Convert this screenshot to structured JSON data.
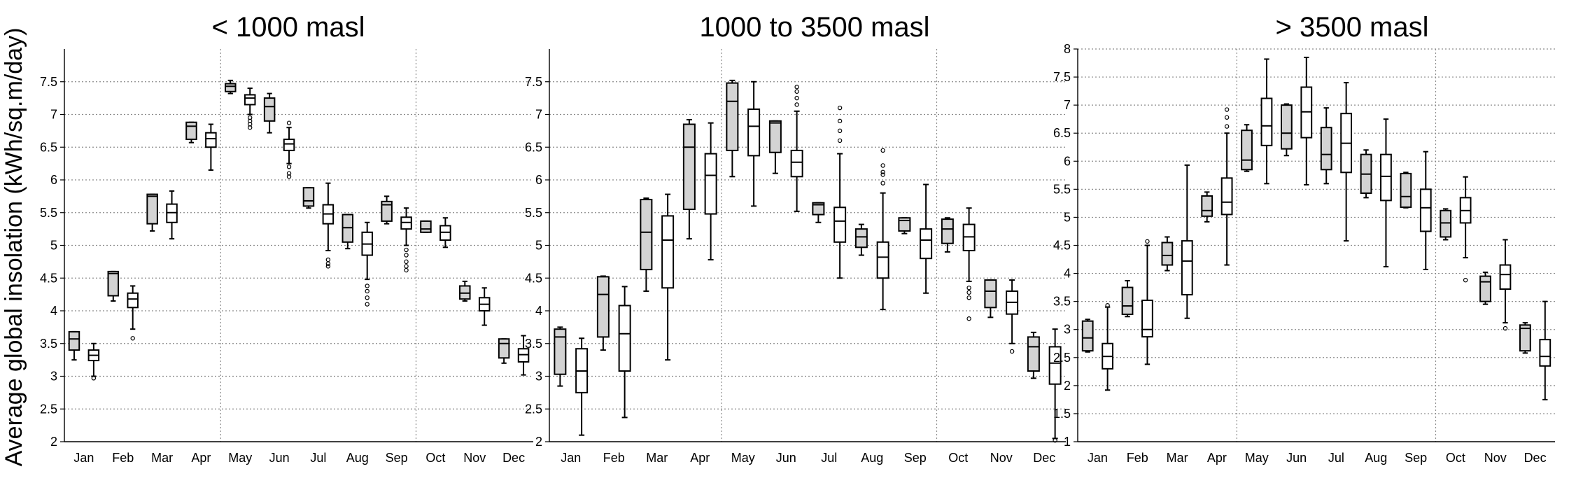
{
  "ylabel": "Average global insolation (kWh/sq.m/day)",
  "chart_data": [
    {
      "type": "boxplot",
      "title": "< 1000 masl",
      "ylim": [
        2,
        8
      ],
      "yticks": [
        "2",
        "2.5",
        "3",
        "3.5",
        "4",
        "4.5",
        "5",
        "5.5",
        "6",
        "6.5",
        "7",
        "7.5"
      ],
      "categories": [
        "Jan",
        "Feb",
        "Mar",
        "Apr",
        "May",
        "Jun",
        "Jul",
        "Aug",
        "Sep",
        "Oct",
        "Nov",
        "Dec"
      ],
      "vlines_after": [
        "Apr",
        "Sep"
      ],
      "grid": true,
      "boxes": [
        {
          "month": "Jan",
          "fill": "#d3d3d3",
          "min": 3.25,
          "q1": 3.4,
          "med": 3.57,
          "q3": 3.68,
          "max": 3.68,
          "outliers": []
        },
        {
          "month": "Jan",
          "fill": "#ffffff",
          "min": 3.0,
          "q1": 3.24,
          "med": 3.32,
          "q3": 3.4,
          "max": 3.5,
          "outliers": [
            2.97
          ]
        },
        {
          "month": "Feb",
          "fill": "#d3d3d3",
          "min": 4.15,
          "q1": 4.23,
          "med": 4.57,
          "q3": 4.6,
          "max": 4.6,
          "outliers": []
        },
        {
          "month": "Feb",
          "fill": "#ffffff",
          "min": 3.72,
          "q1": 4.05,
          "med": 4.18,
          "q3": 4.27,
          "max": 4.38,
          "outliers": [
            3.58
          ]
        },
        {
          "month": "Mar",
          "fill": "#d3d3d3",
          "min": 5.22,
          "q1": 5.33,
          "med": 5.75,
          "q3": 5.78,
          "max": 5.78,
          "outliers": []
        },
        {
          "month": "Mar",
          "fill": "#ffffff",
          "min": 5.1,
          "q1": 5.35,
          "med": 5.5,
          "q3": 5.63,
          "max": 5.83,
          "outliers": []
        },
        {
          "month": "Apr",
          "fill": "#d3d3d3",
          "min": 6.57,
          "q1": 6.62,
          "med": 6.82,
          "q3": 6.88,
          "max": 6.88,
          "outliers": []
        },
        {
          "month": "Apr",
          "fill": "#ffffff",
          "min": 6.15,
          "q1": 6.5,
          "med": 6.63,
          "q3": 6.72,
          "max": 6.85,
          "outliers": []
        },
        {
          "month": "May",
          "fill": "#d3d3d3",
          "min": 7.32,
          "q1": 7.35,
          "med": 7.43,
          "q3": 7.47,
          "max": 7.52,
          "outliers": []
        },
        {
          "month": "May",
          "fill": "#ffffff",
          "min": 7.0,
          "q1": 7.15,
          "med": 7.25,
          "q3": 7.3,
          "max": 7.4,
          "outliers": [
            6.95,
            6.9,
            6.85,
            6.8
          ]
        },
        {
          "month": "Jun",
          "fill": "#d3d3d3",
          "min": 6.72,
          "q1": 6.9,
          "med": 7.12,
          "q3": 7.25,
          "max": 7.32,
          "outliers": []
        },
        {
          "month": "Jun",
          "fill": "#ffffff",
          "min": 6.25,
          "q1": 6.45,
          "med": 6.55,
          "q3": 6.62,
          "max": 6.8,
          "outliers": [
            6.87,
            6.2,
            6.1,
            6.05
          ]
        },
        {
          "month": "Jul",
          "fill": "#d3d3d3",
          "min": 5.57,
          "q1": 5.6,
          "med": 5.68,
          "q3": 5.88,
          "max": 5.88,
          "outliers": []
        },
        {
          "month": "Jul",
          "fill": "#ffffff",
          "min": 4.92,
          "q1": 5.33,
          "med": 5.48,
          "q3": 5.62,
          "max": 5.95,
          "outliers": [
            4.78,
            4.72,
            4.68
          ]
        },
        {
          "month": "Aug",
          "fill": "#d3d3d3",
          "min": 4.95,
          "q1": 5.05,
          "med": 5.27,
          "q3": 5.47,
          "max": 5.47,
          "outliers": []
        },
        {
          "month": "Aug",
          "fill": "#ffffff",
          "min": 4.48,
          "q1": 4.85,
          "med": 5.02,
          "q3": 5.2,
          "max": 5.35,
          "outliers": [
            4.38,
            4.3,
            4.2,
            4.1
          ]
        },
        {
          "month": "Sep",
          "fill": "#d3d3d3",
          "min": 5.33,
          "q1": 5.37,
          "med": 5.62,
          "q3": 5.67,
          "max": 5.75,
          "outliers": []
        },
        {
          "month": "Sep",
          "fill": "#ffffff",
          "min": 5.0,
          "q1": 5.25,
          "med": 5.35,
          "q3": 5.43,
          "max": 5.57,
          "outliers": [
            4.93,
            4.85,
            4.75,
            4.68,
            4.62
          ]
        },
        {
          "month": "Oct",
          "fill": "#d3d3d3",
          "min": 5.2,
          "q1": 5.2,
          "med": 5.25,
          "q3": 5.37,
          "max": 5.37,
          "outliers": []
        },
        {
          "month": "Oct",
          "fill": "#ffffff",
          "min": 4.97,
          "q1": 5.08,
          "med": 5.2,
          "q3": 5.3,
          "max": 5.42,
          "outliers": []
        },
        {
          "month": "Nov",
          "fill": "#d3d3d3",
          "min": 4.15,
          "q1": 4.18,
          "med": 4.27,
          "q3": 4.38,
          "max": 4.45,
          "outliers": []
        },
        {
          "month": "Nov",
          "fill": "#ffffff",
          "min": 3.78,
          "q1": 4.0,
          "med": 4.1,
          "q3": 4.2,
          "max": 4.35,
          "outliers": []
        },
        {
          "month": "Dec",
          "fill": "#d3d3d3",
          "min": 3.2,
          "q1": 3.28,
          "med": 3.5,
          "q3": 3.57,
          "max": 3.57,
          "outliers": []
        },
        {
          "month": "Dec",
          "fill": "#ffffff",
          "min": 3.02,
          "q1": 3.22,
          "med": 3.33,
          "q3": 3.42,
          "max": 3.62,
          "outliers": []
        }
      ]
    },
    {
      "type": "boxplot",
      "title": "1000 to 3500 masl",
      "ylim": [
        2,
        8
      ],
      "yticks": [
        "2",
        "2.5",
        "3",
        "3.5",
        "4",
        "4.5",
        "5",
        "5.5",
        "6",
        "6.5",
        "7",
        "7.5"
      ],
      "categories": [
        "Jan",
        "Feb",
        "Mar",
        "Apr",
        "May",
        "Jun",
        "Jul",
        "Aug",
        "Sep",
        "Oct",
        "Nov",
        "Dec"
      ],
      "vlines_after": [
        "Apr",
        "Sep"
      ],
      "grid": true,
      "boxes": [
        {
          "month": "Jan",
          "fill": "#d3d3d3",
          "min": 2.85,
          "q1": 3.03,
          "med": 3.6,
          "q3": 3.72,
          "max": 3.75,
          "outliers": []
        },
        {
          "month": "Jan",
          "fill": "#ffffff",
          "min": 2.1,
          "q1": 2.75,
          "med": 3.08,
          "q3": 3.42,
          "max": 3.58,
          "outliers": []
        },
        {
          "month": "Feb",
          "fill": "#d3d3d3",
          "min": 3.4,
          "q1": 3.6,
          "med": 4.25,
          "q3": 4.52,
          "max": 4.53,
          "outliers": []
        },
        {
          "month": "Feb",
          "fill": "#ffffff",
          "min": 2.37,
          "q1": 3.08,
          "med": 3.65,
          "q3": 4.08,
          "max": 4.37,
          "outliers": []
        },
        {
          "month": "Mar",
          "fill": "#d3d3d3",
          "min": 4.3,
          "q1": 4.63,
          "med": 5.2,
          "q3": 5.7,
          "max": 5.72,
          "outliers": []
        },
        {
          "month": "Mar",
          "fill": "#ffffff",
          "min": 3.25,
          "q1": 4.35,
          "med": 5.08,
          "q3": 5.45,
          "max": 5.78,
          "outliers": []
        },
        {
          "month": "Apr",
          "fill": "#d3d3d3",
          "min": 5.1,
          "q1": 5.55,
          "med": 6.5,
          "q3": 6.85,
          "max": 6.92,
          "outliers": []
        },
        {
          "month": "Apr",
          "fill": "#ffffff",
          "min": 4.78,
          "q1": 5.48,
          "med": 6.07,
          "q3": 6.4,
          "max": 6.87,
          "outliers": []
        },
        {
          "month": "May",
          "fill": "#d3d3d3",
          "min": 6.05,
          "q1": 6.45,
          "med": 7.2,
          "q3": 7.48,
          "max": 7.52,
          "outliers": []
        },
        {
          "month": "May",
          "fill": "#ffffff",
          "min": 5.6,
          "q1": 6.37,
          "med": 6.82,
          "q3": 7.08,
          "max": 7.5,
          "outliers": []
        },
        {
          "month": "Jun",
          "fill": "#d3d3d3",
          "min": 6.1,
          "q1": 6.42,
          "med": 6.87,
          "q3": 6.9,
          "max": 6.9,
          "outliers": []
        },
        {
          "month": "Jun",
          "fill": "#ffffff",
          "min": 5.52,
          "q1": 6.05,
          "med": 6.27,
          "q3": 6.45,
          "max": 7.05,
          "outliers": [
            7.42,
            7.35,
            7.25,
            7.15
          ]
        },
        {
          "month": "Jul",
          "fill": "#d3d3d3",
          "min": 5.35,
          "q1": 5.47,
          "med": 5.62,
          "q3": 5.65,
          "max": 5.65,
          "outliers": []
        },
        {
          "month": "Jul",
          "fill": "#ffffff",
          "min": 4.5,
          "q1": 5.05,
          "med": 5.37,
          "q3": 5.58,
          "max": 6.4,
          "outliers": [
            7.1,
            6.9,
            6.75,
            6.6
          ]
        },
        {
          "month": "Aug",
          "fill": "#d3d3d3",
          "min": 4.85,
          "q1": 4.97,
          "med": 5.13,
          "q3": 5.25,
          "max": 5.32,
          "outliers": []
        },
        {
          "month": "Aug",
          "fill": "#ffffff",
          "min": 4.02,
          "q1": 4.5,
          "med": 4.82,
          "q3": 5.05,
          "max": 5.8,
          "outliers": [
            6.45,
            6.22,
            6.12,
            6.08,
            5.95
          ]
        },
        {
          "month": "Sep",
          "fill": "#d3d3d3",
          "min": 5.18,
          "q1": 5.22,
          "med": 5.38,
          "q3": 5.42,
          "max": 5.42,
          "outliers": []
        },
        {
          "month": "Sep",
          "fill": "#ffffff",
          "min": 4.27,
          "q1": 4.8,
          "med": 5.08,
          "q3": 5.25,
          "max": 5.93,
          "outliers": []
        },
        {
          "month": "Oct",
          "fill": "#d3d3d3",
          "min": 4.9,
          "q1": 5.03,
          "med": 5.25,
          "q3": 5.4,
          "max": 5.42,
          "outliers": []
        },
        {
          "month": "Oct",
          "fill": "#ffffff",
          "min": 4.45,
          "q1": 4.92,
          "med": 5.13,
          "q3": 5.32,
          "max": 5.57,
          "outliers": [
            4.35,
            4.28,
            4.2,
            3.88
          ]
        },
        {
          "month": "Nov",
          "fill": "#d3d3d3",
          "min": 3.9,
          "q1": 4.05,
          "med": 4.3,
          "q3": 4.47,
          "max": 4.47,
          "outliers": []
        },
        {
          "month": "Nov",
          "fill": "#ffffff",
          "min": 3.5,
          "q1": 3.95,
          "med": 4.13,
          "q3": 4.3,
          "max": 4.47,
          "outliers": [
            3.38
          ]
        },
        {
          "month": "Dec",
          "fill": "#d3d3d3",
          "min": 2.97,
          "q1": 3.08,
          "med": 3.45,
          "q3": 3.6,
          "max": 3.67,
          "outliers": []
        },
        {
          "month": "Dec",
          "fill": "#ffffff",
          "min": 2.05,
          "q1": 2.88,
          "med": 3.2,
          "q3": 3.45,
          "max": 3.72,
          "outliers": [
            2.02
          ]
        }
      ]
    },
    {
      "type": "boxplot",
      "title": "> 3500 masl",
      "ylim": [
        1,
        8
      ],
      "yticks": [
        "1",
        "1.5",
        "2",
        "2.5",
        "3",
        "3.5",
        "4",
        "4.5",
        "5",
        "5.5",
        "6",
        "6.5",
        "7",
        "7.5",
        "8"
      ],
      "categories": [
        "Jan",
        "Feb",
        "Mar",
        "Apr",
        "May",
        "Jun",
        "Jul",
        "Aug",
        "Sep",
        "Oct",
        "Nov",
        "Dec"
      ],
      "vlines_after": [
        "Apr",
        "Sep"
      ],
      "grid": true,
      "boxes": [
        {
          "month": "Jan",
          "fill": "#d3d3d3",
          "min": 2.6,
          "q1": 2.62,
          "med": 2.85,
          "q3": 3.15,
          "max": 3.18,
          "outliers": []
        },
        {
          "month": "Jan",
          "fill": "#ffffff",
          "min": 1.92,
          "q1": 2.3,
          "med": 2.52,
          "q3": 2.75,
          "max": 3.4,
          "outliers": [
            3.43
          ]
        },
        {
          "month": "Feb",
          "fill": "#d3d3d3",
          "min": 3.23,
          "q1": 3.27,
          "med": 3.42,
          "q3": 3.75,
          "max": 3.87,
          "outliers": []
        },
        {
          "month": "Feb",
          "fill": "#ffffff",
          "min": 2.38,
          "q1": 2.87,
          "med": 3.0,
          "q3": 3.52,
          "max": 4.5,
          "outliers": [
            4.57
          ]
        },
        {
          "month": "Mar",
          "fill": "#d3d3d3",
          "min": 4.05,
          "q1": 4.15,
          "med": 4.32,
          "q3": 4.55,
          "max": 4.65,
          "outliers": []
        },
        {
          "month": "Mar",
          "fill": "#ffffff",
          "min": 3.2,
          "q1": 3.62,
          "med": 4.22,
          "q3": 4.58,
          "max": 5.93,
          "outliers": []
        },
        {
          "month": "Apr",
          "fill": "#d3d3d3",
          "min": 4.92,
          "q1": 5.02,
          "med": 5.12,
          "q3": 5.38,
          "max": 5.45,
          "outliers": []
        },
        {
          "month": "Apr",
          "fill": "#ffffff",
          "min": 4.15,
          "q1": 5.05,
          "med": 5.27,
          "q3": 5.7,
          "max": 6.5,
          "outliers": [
            6.92,
            6.78,
            6.62
          ]
        },
        {
          "month": "May",
          "fill": "#d3d3d3",
          "min": 5.82,
          "q1": 5.85,
          "med": 6.02,
          "q3": 6.55,
          "max": 6.65,
          "outliers": []
        },
        {
          "month": "May",
          "fill": "#ffffff",
          "min": 5.6,
          "q1": 6.28,
          "med": 6.63,
          "q3": 7.12,
          "max": 7.82,
          "outliers": []
        },
        {
          "month": "Jun",
          "fill": "#d3d3d3",
          "min": 6.1,
          "q1": 6.22,
          "med": 6.5,
          "q3": 7.0,
          "max": 7.02,
          "outliers": []
        },
        {
          "month": "Jun",
          "fill": "#ffffff",
          "min": 5.58,
          "q1": 6.42,
          "med": 6.88,
          "q3": 7.32,
          "max": 7.85,
          "outliers": []
        },
        {
          "month": "Jul",
          "fill": "#d3d3d3",
          "min": 5.6,
          "q1": 5.85,
          "med": 6.12,
          "q3": 6.6,
          "max": 6.95,
          "outliers": []
        },
        {
          "month": "Jul",
          "fill": "#ffffff",
          "min": 4.58,
          "q1": 5.8,
          "med": 6.32,
          "q3": 6.85,
          "max": 7.4,
          "outliers": []
        },
        {
          "month": "Aug",
          "fill": "#d3d3d3",
          "min": 5.35,
          "q1": 5.43,
          "med": 5.77,
          "q3": 6.12,
          "max": 6.2,
          "outliers": []
        },
        {
          "month": "Aug",
          "fill": "#ffffff",
          "min": 4.12,
          "q1": 5.3,
          "med": 5.73,
          "q3": 6.12,
          "max": 6.75,
          "outliers": []
        },
        {
          "month": "Sep",
          "fill": "#d3d3d3",
          "min": 5.17,
          "q1": 5.18,
          "med": 5.37,
          "q3": 5.78,
          "max": 5.8,
          "outliers": []
        },
        {
          "month": "Sep",
          "fill": "#ffffff",
          "min": 4.07,
          "q1": 4.75,
          "med": 5.17,
          "q3": 5.5,
          "max": 6.17,
          "outliers": []
        },
        {
          "month": "Oct",
          "fill": "#d3d3d3",
          "min": 4.6,
          "q1": 4.65,
          "med": 4.9,
          "q3": 5.12,
          "max": 5.15,
          "outliers": []
        },
        {
          "month": "Oct",
          "fill": "#ffffff",
          "min": 4.28,
          "q1": 4.9,
          "med": 5.12,
          "q3": 5.35,
          "max": 5.72,
          "outliers": [
            3.88
          ]
        },
        {
          "month": "Nov",
          "fill": "#d3d3d3",
          "min": 3.45,
          "q1": 3.5,
          "med": 3.85,
          "q3": 3.95,
          "max": 4.02,
          "outliers": []
        },
        {
          "month": "Nov",
          "fill": "#ffffff",
          "min": 3.12,
          "q1": 3.72,
          "med": 3.98,
          "q3": 4.15,
          "max": 4.6,
          "outliers": [
            3.02
          ]
        },
        {
          "month": "Dec",
          "fill": "#d3d3d3",
          "min": 2.58,
          "q1": 2.62,
          "med": 3.02,
          "q3": 3.08,
          "max": 3.12,
          "outliers": []
        },
        {
          "month": "Dec",
          "fill": "#ffffff",
          "min": 1.75,
          "q1": 2.35,
          "med": 2.52,
          "q3": 2.82,
          "max": 3.5,
          "outliers": []
        }
      ]
    }
  ]
}
